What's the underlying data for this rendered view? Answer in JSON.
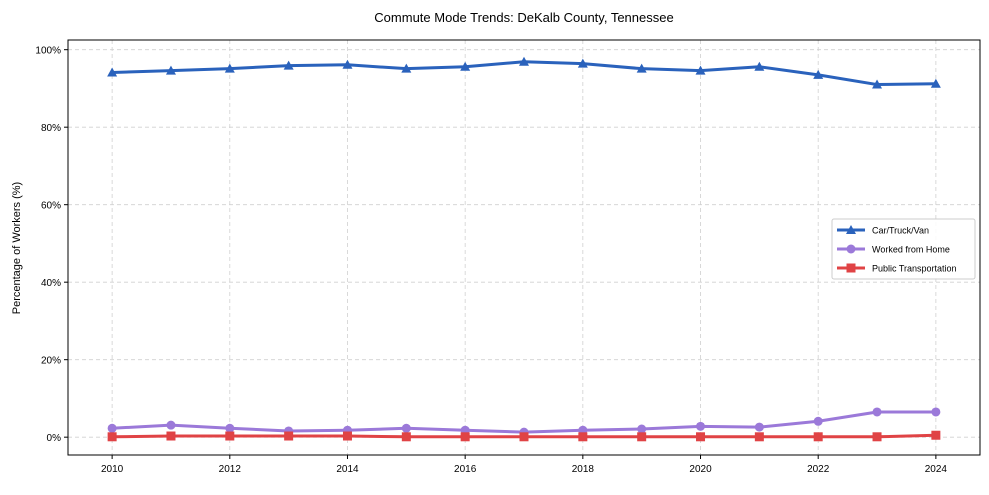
{
  "chart_data": {
    "type": "line",
    "title": "Commute Mode Trends: DeKalb County, Tennessee",
    "xlabel": "",
    "ylabel": "Percentage of Workers (%)",
    "x": [
      2010,
      2011,
      2012,
      2013,
      2014,
      2015,
      2016,
      2017,
      2018,
      2019,
      2020,
      2021,
      2022,
      2023,
      2024
    ],
    "xticks": [
      "2010",
      "2012",
      "2014",
      "2016",
      "2018",
      "2020",
      "2022",
      "2024"
    ],
    "yticks": [
      "0%",
      "20%",
      "40%",
      "60%",
      "80%",
      "100%"
    ],
    "xlim": [
      2009.25,
      2024.75
    ],
    "ylim": [
      -4.6,
      102.5
    ],
    "grid": true,
    "legend_position": "center-right",
    "series": [
      {
        "name": "Car/Truck/Van",
        "color": "#2a62bc",
        "marker": "triangle",
        "values": [
          94.1,
          94.6,
          95.1,
          95.9,
          96.1,
          95.1,
          95.6,
          96.9,
          96.4,
          95.1,
          94.6,
          95.6,
          93.5,
          91.0,
          91.2
        ]
      },
      {
        "name": "Worked from Home",
        "color": "#9b79d9",
        "marker": "circle",
        "values": [
          2.3,
          3.1,
          2.3,
          1.6,
          1.8,
          2.3,
          1.8,
          1.3,
          1.8,
          2.1,
          2.8,
          2.6,
          4.1,
          6.5,
          6.5
        ]
      },
      {
        "name": "Public Transportation",
        "color": "#e04345",
        "marker": "square",
        "values": [
          0.1,
          0.3,
          0.3,
          0.3,
          0.3,
          0.1,
          0.1,
          0.1,
          0.1,
          0.1,
          0.1,
          0.1,
          0.1,
          0.1,
          0.5
        ]
      }
    ]
  }
}
